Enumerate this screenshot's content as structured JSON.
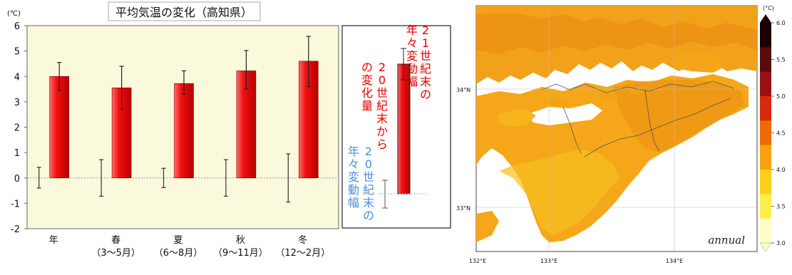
{
  "chart_data": [
    {
      "type": "bar",
      "title": "平均気温の変化（高知県）",
      "ylabel": "(℃)",
      "ylim": [
        -2,
        6
      ],
      "yticks": [
        "-2",
        "-1",
        "0",
        "1",
        "2",
        "3",
        "4",
        "5",
        "6"
      ],
      "categories": [
        {
          "name": "年",
          "sub": ""
        },
        {
          "name": "春",
          "sub": "（3～5月）"
        },
        {
          "name": "夏",
          "sub": "（6～8月）"
        },
        {
          "name": "秋",
          "sub": "（9～11月）"
        },
        {
          "name": "冬",
          "sub": "（12～2月）"
        }
      ],
      "series": [
        {
          "values": [
            4.0,
            3.55,
            3.72,
            4.22,
            4.6
          ],
          "err_low": [
            3.45,
            2.7,
            3.3,
            3.5,
            3.6
          ],
          "err_high": [
            4.55,
            4.4,
            4.22,
            5.02,
            5.58
          ],
          "color": "#e60000"
        },
        {
          "values": [
            0,
            0,
            0,
            0,
            0
          ],
          "err_low": [
            -0.4,
            -0.72,
            -0.38,
            -0.72,
            -0.95
          ],
          "err_high": [
            0.42,
            0.72,
            0.38,
            0.72,
            0.95
          ],
          "color": "#333333"
        }
      ],
      "background": "#fbf9dc"
    },
    {
      "type": "heatmap",
      "annotation": "annual",
      "xticks": [
        "132°E",
        "133°E",
        "134°E"
      ],
      "yticks": [
        "34°N",
        "33°N"
      ],
      "colorbar": {
        "unit": "(°C)",
        "ticks": [
          "6.0",
          "5.5",
          "5.0",
          "4.5",
          "4.0",
          "3.5",
          "3.0"
        ],
        "colors": [
          "#1a0000",
          "#5a0a0a",
          "#961212",
          "#d62a0a",
          "#ee6a08",
          "#f8a210",
          "#fcd01a",
          "#fdef4a",
          "#fefcc8"
        ]
      }
    }
  ],
  "legend": {
    "lines": {
      "future_a": "21世紀末の",
      "future_b": "年々変動幅",
      "change_a": "20世紀末から",
      "change_b": "の変化量",
      "past_a": "20世紀末の",
      "past_b": "年々変動幅"
    },
    "future_color": "#e60000",
    "past_color": "#4a8fd8"
  }
}
